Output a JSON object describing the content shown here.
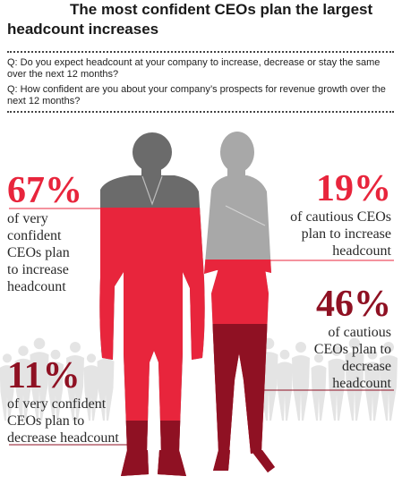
{
  "title_line1": "The most confident CEOs plan the largest",
  "title_line2": "headcount increases",
  "question1": "Q: Do you expect headcount at your company to increase, decrease or stay the same over the next 12 months?",
  "question2": "Q: How confident are you about your company’s prospects for revenue growth over the next 12 months?",
  "colors": {
    "red": "#e8253c",
    "dark_red": "#8f1123",
    "grey": "#6b6b6b",
    "light_grey": "#a8a8a8",
    "crowd": "#e4e4e4"
  },
  "chart_data": {
    "type": "pictograph",
    "groups": [
      {
        "name": "very confident CEOs",
        "figure": "man",
        "increase": 67,
        "decrease": 11,
        "increase_text": "of very confident CEOs plan to increase headcount",
        "decrease_text": "of very confident CEOs plan to decrease headcount"
      },
      {
        "name": "cautious CEOs",
        "figure": "woman",
        "increase": 19,
        "decrease": 46,
        "increase_text": "of cautious CEOs plan to increase headcount",
        "decrease_text": "of cautious CEOs plan to decrease headcount"
      }
    ]
  },
  "labels": {
    "s67": {
      "pct": "67%",
      "l1": "of very",
      "l2": "confident",
      "l3": "CEOs plan",
      "l4": "to increase",
      "l5": "headcount"
    },
    "s11": {
      "pct": "11%",
      "l1": "of very confident",
      "l2": "CEOs plan to",
      "l3": "decrease headcount"
    },
    "s19": {
      "pct": "19%",
      "l1": "of cautious CEOs",
      "l2": "plan to increase",
      "l3": "headcount"
    },
    "s46": {
      "pct": "46%",
      "l1": "of cautious",
      "l2": "CEOs plan to",
      "l3": "decrease",
      "l4": "headcount"
    }
  }
}
